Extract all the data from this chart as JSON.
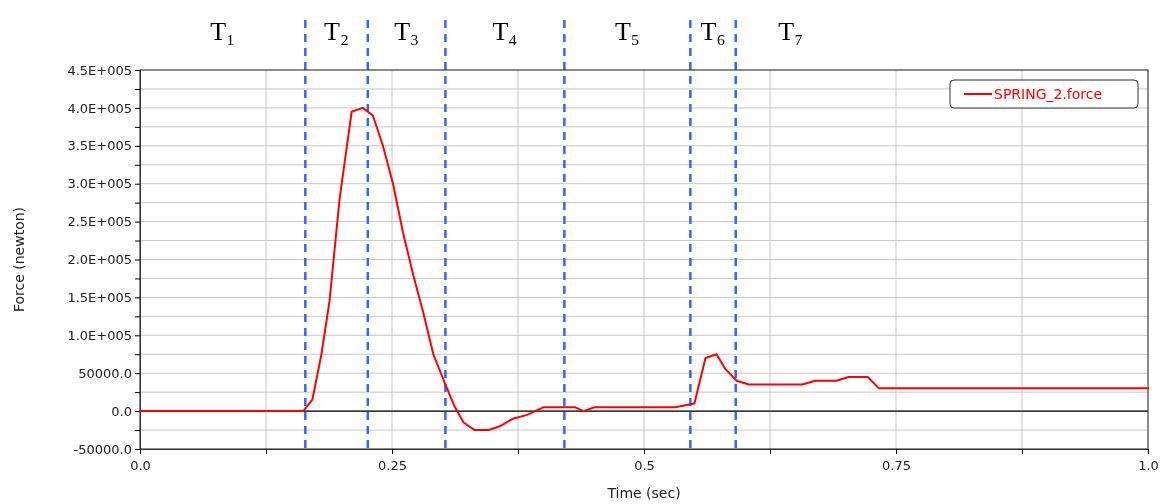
{
  "chart_data": {
    "type": "line",
    "xlabel": "Time (sec)",
    "ylabel": "Force (newton)",
    "xlim": [
      0,
      1
    ],
    "ylim": [
      -50000,
      450000
    ],
    "xticks": [
      {
        "value": 0,
        "label": "0.0"
      },
      {
        "value": 0.125,
        "label": null
      },
      0.25,
      {
        "value": 0.375,
        "label": null
      },
      0.5,
      {
        "value": 0.625,
        "label": null
      },
      0.75,
      {
        "value": 0.875,
        "label": null
      },
      {
        "value": 1,
        "label": "1.0"
      }
    ],
    "yticks": [
      {
        "value": -50000,
        "label": "-50000.0"
      },
      {
        "value": -25000,
        "label": null
      },
      {
        "value": 0,
        "label": "0.0"
      },
      {
        "value": 25000,
        "label": null
      },
      {
        "value": 50000,
        "label": "50000.0"
      },
      {
        "value": 75000,
        "label": null
      },
      {
        "value": 100000,
        "label": "1.0E+005"
      },
      {
        "value": 125000,
        "label": null
      },
      {
        "value": 150000,
        "label": "1.5E+005"
      },
      {
        "value": 175000,
        "label": null
      },
      {
        "value": 200000,
        "label": "2.0E+005"
      },
      {
        "value": 225000,
        "label": null
      },
      {
        "value": 250000,
        "label": "2.5E+005"
      },
      {
        "value": 275000,
        "label": null
      },
      {
        "value": 300000,
        "label": "3.0E+005"
      },
      {
        "value": 325000,
        "label": null
      },
      {
        "value": 350000,
        "label": "3.5E+005"
      },
      {
        "value": 375000,
        "label": null
      },
      {
        "value": 400000,
        "label": "4.0E+005"
      },
      {
        "value": 425000,
        "label": null
      },
      {
        "value": 450000,
        "label": "4.5E+005"
      }
    ],
    "grid": true,
    "legend": "top right",
    "marker": "none",
    "line_style": "solid",
    "series": [
      {
        "name": "SPRING_2.force",
        "color": "#ff0000",
        "x": [
          0,
          0.05,
          0.1,
          0.162,
          0.171,
          0.18,
          0.188,
          0.198,
          0.21,
          0.221,
          0.231,
          0.241,
          0.251,
          0.261,
          0.271,
          0.281,
          0.291,
          0.303,
          0.3125,
          0.321,
          0.332,
          0.346,
          0.357,
          0.37,
          0.384,
          0.4,
          0.417,
          0.432,
          0.44,
          0.451,
          0.474,
          0.493,
          0.52,
          0.531,
          0.55,
          0.561,
          0.572,
          0.581,
          0.592,
          0.604,
          0.636,
          0.646,
          0.657,
          0.67,
          0.679,
          0.691,
          0.703,
          0.722,
          0.733,
          0.752,
          0.754,
          1
        ],
        "values": [
          0,
          0,
          0,
          0,
          15000,
          75000,
          145000,
          280000,
          395000,
          400000,
          390000,
          350000,
          300000,
          235000,
          180000,
          130000,
          75000,
          35000,
          5000,
          -15000,
          -25000,
          -25000,
          -20000,
          -10000,
          -5000,
          5000,
          5000,
          5000,
          0,
          5000,
          5000,
          5000,
          5000,
          5000,
          10000,
          70000,
          75000,
          55000,
          40000,
          35000,
          35000,
          35000,
          35000,
          40000,
          40000,
          40000,
          45000,
          45000,
          30000,
          30000,
          30000,
          30000
        ]
      }
    ],
    "ref_lines": [
      {
        "axis": "y",
        "value": 0,
        "label": null,
        "color": "#000000",
        "line_style": "solid"
      },
      {
        "axis": "x",
        "value": 0.164,
        "label": null,
        "color": "#3366ff",
        "line_style": "dashed"
      },
      {
        "axis": "x",
        "value": 0.226,
        "label": null,
        "color": "#3366ff",
        "line_style": "dashed"
      },
      {
        "axis": "x",
        "value": 0.303,
        "label": null,
        "color": "#3366ff",
        "line_style": "dashed"
      },
      {
        "axis": "x",
        "value": 0.421,
        "label": null,
        "color": "#3366ff",
        "line_style": "dashed"
      },
      {
        "axis": "x",
        "value": 0.546,
        "label": null,
        "color": "#3366ff",
        "line_style": "dashed"
      },
      {
        "axis": "x",
        "value": 0.591,
        "label": null,
        "color": "#3366ff",
        "line_style": "dashed"
      }
    ],
    "annotations": [
      "T₁",
      "T₂",
      "T₃",
      "T₄",
      "T₅",
      "T₆",
      "T₇"
    ]
  }
}
